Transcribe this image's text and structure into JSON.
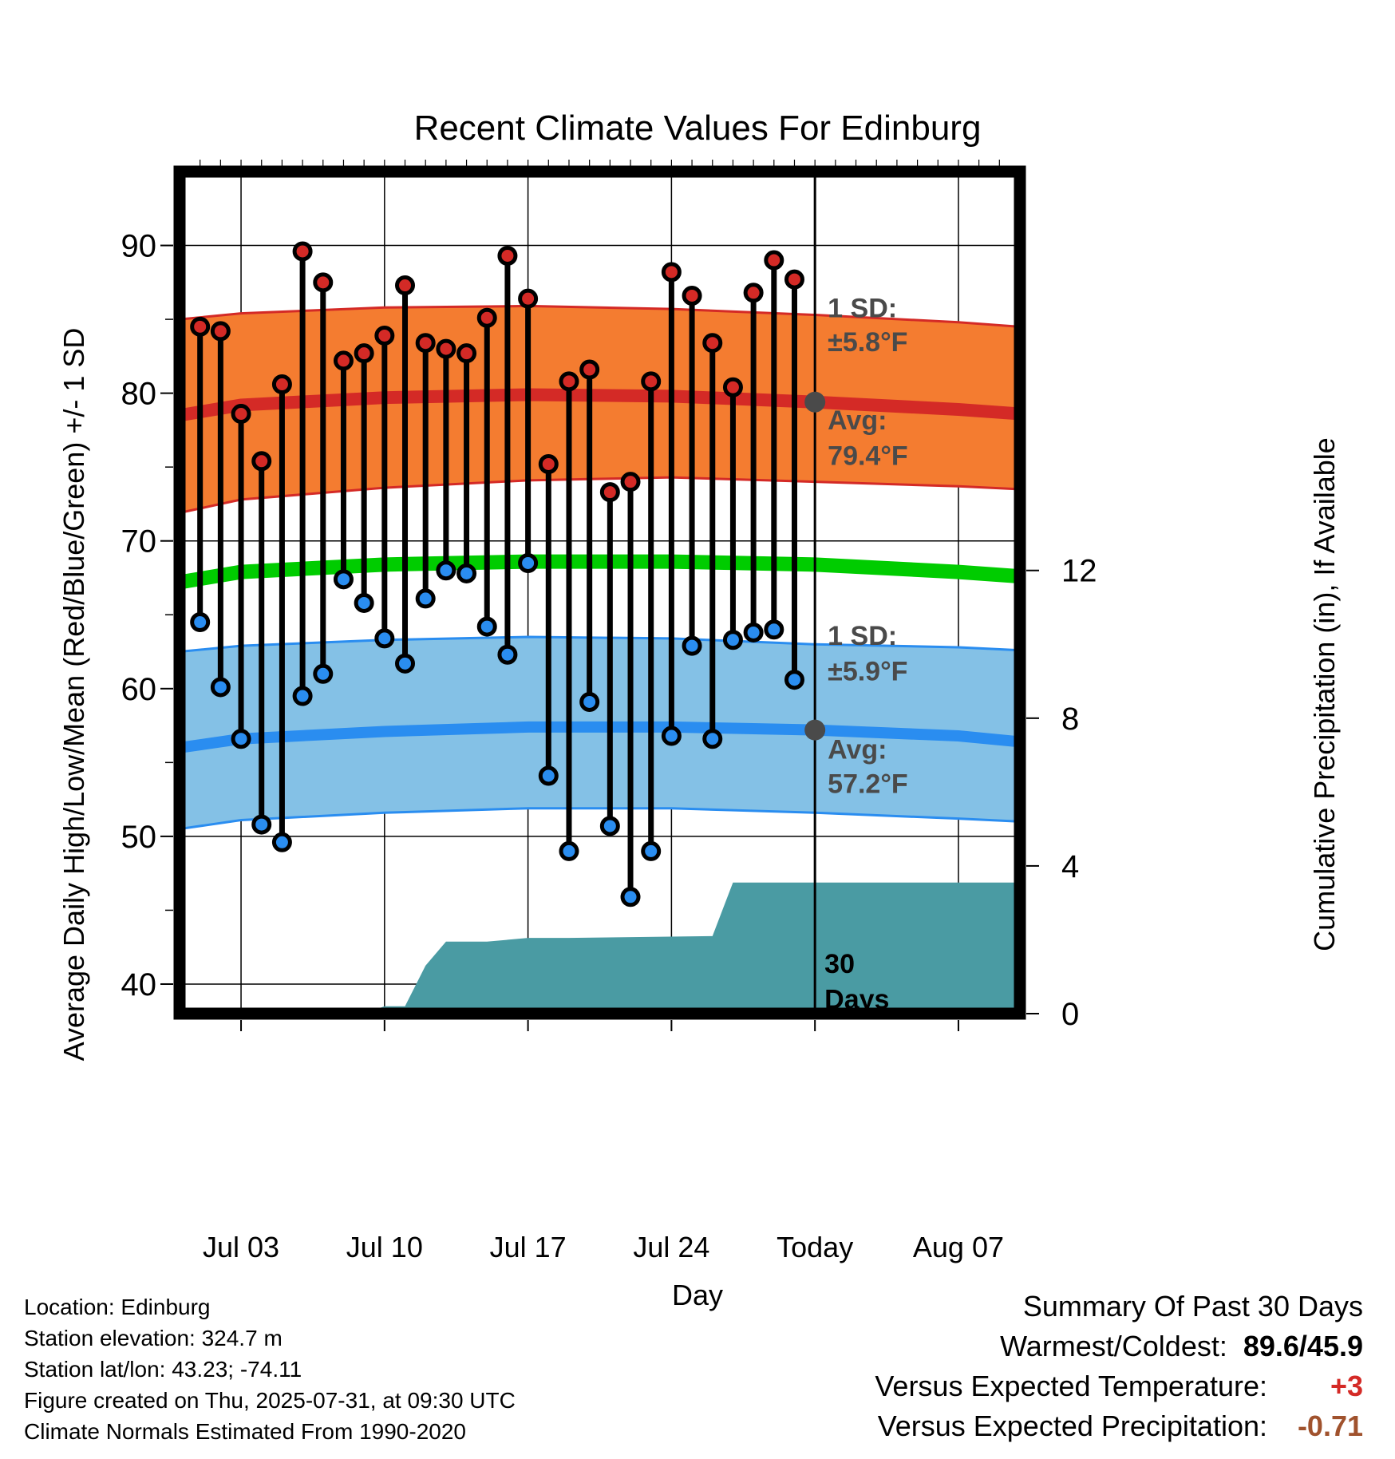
{
  "chart_data": {
    "type": "line",
    "title": "Recent Climate Values For Edinburg",
    "xlabel": "Day",
    "ylabel": "Average Daily High/Low/Mean (Red/Blue/Green) +/- 1 SD",
    "y2label": "Cumulative Precipitation (in), If Available",
    "ylim": [
      38,
      95
    ],
    "y2lim": [
      0,
      22.8
    ],
    "xlim": [
      "2025-06-30",
      "2025-08-10"
    ],
    "yticks": [
      "40",
      "50",
      "60",
      "70",
      "80",
      "90"
    ],
    "y2ticks": [
      "0",
      "4",
      "8",
      "12"
    ],
    "xticks": [
      {
        "date": "2025-07-03",
        "label": "Jul 03"
      },
      {
        "date": "2025-07-10",
        "label": "Jul 10"
      },
      {
        "date": "2025-07-17",
        "label": "Jul 17"
      },
      {
        "date": "2025-07-24",
        "label": "Jul 24"
      },
      {
        "date": "2025-07-31",
        "label": "Today"
      },
      {
        "date": "2025-08-07",
        "label": "Aug 07"
      }
    ],
    "today": "2025-07-31",
    "days": [
      "2025-07-01",
      "2025-07-02",
      "2025-07-03",
      "2025-07-04",
      "2025-07-05",
      "2025-07-06",
      "2025-07-07",
      "2025-07-08",
      "2025-07-09",
      "2025-07-10",
      "2025-07-11",
      "2025-07-12",
      "2025-07-13",
      "2025-07-14",
      "2025-07-15",
      "2025-07-16",
      "2025-07-17",
      "2025-07-18",
      "2025-07-19",
      "2025-07-20",
      "2025-07-21",
      "2025-07-22",
      "2025-07-23",
      "2025-07-24",
      "2025-07-25",
      "2025-07-26",
      "2025-07-27",
      "2025-07-28",
      "2025-07-29",
      "2025-07-30"
    ],
    "series": [
      {
        "name": "High",
        "values": [
          84.5,
          84.2,
          78.6,
          75.4,
          80.6,
          89.6,
          87.5,
          82.2,
          82.7,
          83.9,
          87.3,
          83.4,
          83.0,
          82.7,
          85.1,
          89.3,
          86.4,
          75.2,
          80.8,
          81.6,
          73.3,
          74.0,
          80.8,
          88.2,
          86.6,
          83.4,
          80.4,
          86.8,
          89.0,
          87.7
        ]
      },
      {
        "name": "Low",
        "values": [
          64.5,
          60.1,
          56.6,
          50.8,
          49.6,
          59.5,
          61.0,
          67.4,
          65.8,
          63.4,
          61.7,
          66.1,
          68.0,
          67.8,
          64.2,
          62.3,
          68.5,
          54.1,
          49.0,
          59.1,
          50.7,
          45.9,
          49.0,
          56.8,
          62.9,
          56.6,
          63.3,
          63.8,
          64.0,
          60.6
        ]
      }
    ],
    "normals": {
      "days": [
        "2025-06-30",
        "2025-07-03",
        "2025-07-10",
        "2025-07-17",
        "2025-07-24",
        "2025-07-31",
        "2025-08-07",
        "2025-08-10"
      ],
      "high_avg": [
        78.5,
        79.2,
        79.7,
        79.9,
        79.8,
        79.4,
        78.9,
        78.6
      ],
      "high_upper": [
        85.0,
        85.4,
        85.8,
        85.9,
        85.7,
        85.3,
        84.8,
        84.5
      ],
      "high_lower": [
        71.9,
        72.8,
        73.6,
        74.1,
        74.3,
        74.0,
        73.7,
        73.5
      ],
      "mean_avg": [
        67.2,
        67.9,
        68.4,
        68.6,
        68.6,
        68.4,
        67.9,
        67.6
      ],
      "low_avg": [
        56.0,
        56.6,
        57.1,
        57.4,
        57.4,
        57.2,
        56.8,
        56.4
      ],
      "low_upper": [
        62.5,
        62.9,
        63.3,
        63.5,
        63.4,
        63.0,
        62.8,
        62.6
      ],
      "low_lower": [
        50.5,
        51.1,
        51.6,
        51.9,
        51.9,
        51.6,
        51.2,
        51.0
      ]
    },
    "precip_cumulative": {
      "days": [
        "2025-06-30",
        "2025-07-09",
        "2025-07-10",
        "2025-07-11",
        "2025-07-12",
        "2025-07-13",
        "2025-07-15",
        "2025-07-17",
        "2025-07-19",
        "2025-07-26",
        "2025-07-27",
        "2025-08-10"
      ],
      "values": [
        0,
        0,
        0.2,
        0.2,
        1.3,
        1.95,
        1.95,
        2.05,
        2.05,
        2.1,
        3.55,
        3.55
      ]
    },
    "annotations": {
      "high_sd_label": "1 SD:",
      "high_sd_value": "±5.8°F",
      "high_avg_label": "Avg:",
      "high_avg_value": "79.4°F",
      "low_sd_label": "1 SD:",
      "low_sd_value": "±5.9°F",
      "low_avg_label": "Avg:",
      "low_avg_value": "57.2°F",
      "days_count": "30",
      "days_word": "Days"
    },
    "colors": {
      "high_band": "#f47c30",
      "high_line": "#d42a26",
      "high_marker": "#d42a26",
      "low_band": "#84c1e6",
      "low_line": "#2a8df0",
      "low_marker": "#2a8df0",
      "mean_line": "#00cc00",
      "precip": "#4a9ba3"
    },
    "grid": true
  },
  "footer": {
    "location": "Location: Edinburg",
    "elevation": "Station elevation: 324.7 m",
    "latlon": "Station lat/lon: 43.23; -74.11",
    "created": "Figure created on Thu, 2025-07-31, at 09:30 UTC",
    "normals": "Climate Normals Estimated From 1990-2020"
  },
  "summary": {
    "header": "Summary Of Past 30 Days",
    "warmest_label": "Warmest/Coldest:",
    "warmest_value": "89.6/45.9",
    "temp_label": "Versus Expected Temperature:",
    "temp_value": "+3",
    "temp_color": "#d42a26",
    "precip_label": "Versus Expected Precipitation:",
    "precip_value": "-0.71",
    "precip_color": "#a0522d"
  }
}
